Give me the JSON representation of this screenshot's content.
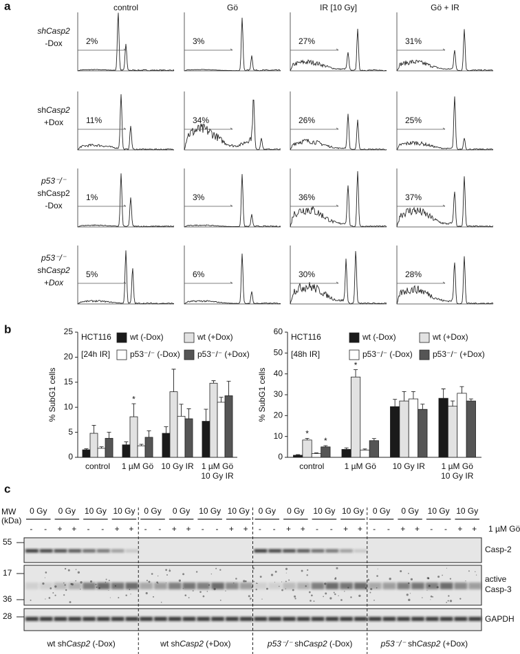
{
  "figure": {
    "panel_a": {
      "label": "a",
      "columns": [
        "control",
        "Gö",
        "IR [10 Gy]",
        "Gö + IR"
      ],
      "rows": [
        {
          "lines": [
            [
              {
                "text": "shCasp2",
                "italic": true
              }
            ],
            [
              {
                "text": "-Dox"
              }
            ]
          ],
          "percents": [
            "2%",
            "3%",
            "27%",
            "31%"
          ]
        },
        {
          "lines": [
            [
              {
                "text": "sh"
              },
              {
                "text": "Casp2",
                "italic": true
              }
            ],
            [
              {
                "text": "+Dox"
              }
            ]
          ],
          "percents": [
            "11%",
            "34%",
            "26%",
            "25%"
          ]
        },
        {
          "lines": [
            [
              {
                "text": "p53⁻/⁻",
                "italic": true
              }
            ],
            [
              {
                "text": "shCasp2"
              }
            ],
            [
              {
                "text": "-Dox"
              }
            ]
          ],
          "percents": [
            "1%",
            "3%",
            "36%",
            "37%"
          ]
        },
        {
          "lines": [
            [
              {
                "text": "p53⁻/⁻",
                "italic": true
              }
            ],
            [
              {
                "text": "sh"
              },
              {
                "text": "Casp2",
                "italic": true
              }
            ],
            [
              {
                "text": "+Dox",
                "italic": true
              }
            ]
          ],
          "percents": [
            "5%",
            "6%",
            "30%",
            "28%"
          ]
        }
      ]
    },
    "panel_b_label": "b",
    "panel_c": {
      "label": "c",
      "mw_label": [
        "MW",
        "(kDa)"
      ],
      "mw_markers": [
        "55",
        "17",
        "36",
        "28"
      ],
      "treatment": "1 µM Gö",
      "bands": [
        [
          "Casp-2"
        ],
        [
          "active",
          "Casp-3"
        ],
        [
          "GAPDH"
        ]
      ],
      "sections": [
        {
          "doses": [
            "0 Gy",
            "0 Gy",
            "10 Gy",
            "10 Gy"
          ],
          "signs": [
            "-",
            "-",
            "+",
            "+",
            "-",
            "-",
            "+",
            "+"
          ],
          "label": [
            {
              "text": "wt sh"
            },
            {
              "text": "Casp2",
              "italic": true
            },
            {
              "text": " (-Dox)"
            }
          ]
        },
        {
          "doses": [
            "0 Gy",
            "0 Gy",
            "10 Gy",
            "10 Gy"
          ],
          "signs": [
            "-",
            "-",
            "+",
            "+",
            "-",
            "-",
            "+",
            "+"
          ],
          "label": [
            {
              "text": "wt sh"
            },
            {
              "text": "Casp2",
              "italic": true
            },
            {
              "text": " (+Dox)"
            }
          ]
        },
        {
          "doses": [
            "0 Gy",
            "0 Gy",
            "10 Gy",
            "10 Gy"
          ],
          "signs": [
            "-",
            "-",
            "+",
            "+",
            "-",
            "-",
            "+",
            "+"
          ],
          "label": [
            {
              "text": "p53⁻/⁻",
              "italic": true
            },
            {
              "text": " sh"
            },
            {
              "text": "Casp2",
              "italic": true
            },
            {
              "text": " (-Dox)"
            }
          ]
        },
        {
          "doses": [
            "0 Gy",
            "0 Gy",
            "10 Gy",
            "10 Gy"
          ],
          "signs": [
            "-",
            "-",
            "+",
            "+",
            "-",
            "-",
            "+",
            "+"
          ],
          "label": [
            {
              "text": "p53⁻/⁻",
              "italic": true
            },
            {
              "text": " sh"
            },
            {
              "text": "Casp2",
              "italic": true
            },
            {
              "text": " (+Dox)"
            }
          ]
        }
      ]
    }
  },
  "chart_data": [
    {
      "type": "bar",
      "annotations": [
        "HCT116",
        "[24h IR]"
      ],
      "ylabel": "% SubG1 cells",
      "categories": [
        [
          "control"
        ],
        [
          "1 µM Gö"
        ],
        [
          "10 Gy IR"
        ],
        [
          "1 µM Gö",
          "10 Gy IR"
        ]
      ],
      "ylim": [
        0,
        25
      ],
      "yticks": [
        0,
        5,
        10,
        15,
        20,
        25
      ],
      "series": [
        {
          "name": "wt (-Dox)",
          "color": "#1a1a1a",
          "values": [
            1.5,
            2.5,
            4.8,
            7.2
          ],
          "errors": [
            0.2,
            0.6,
            1.3,
            2.4
          ]
        },
        {
          "name": "wt (+Dox)",
          "color": "#e2e2e2",
          "values": [
            4.8,
            8.1,
            13.1,
            14.8
          ],
          "errors": [
            1.6,
            2.6,
            4.5,
            0.5
          ]
        },
        {
          "name": "p53⁻/⁻ (-Dox)",
          "color": "#ffffff",
          "values": [
            1.8,
            2.3,
            8.2,
            11.0
          ],
          "errors": [
            0.3,
            0.3,
            2.4,
            1.0
          ]
        },
        {
          "name": "p53⁻/⁻ (+Dox)",
          "color": "#555555",
          "values": [
            3.8,
            4.0,
            7.7,
            12.3
          ],
          "errors": [
            1.2,
            1.3,
            2.0,
            2.9
          ]
        }
      ],
      "markers": [
        {
          "text": "*",
          "series": 1,
          "category": 1
        }
      ]
    },
    {
      "type": "bar",
      "annotations": [
        "HCT116",
        "[48h IR]"
      ],
      "ylabel": "% SubG1 cells",
      "categories": [
        [
          "control"
        ],
        [
          "1 µM Gö"
        ],
        [
          "10 Gy IR"
        ],
        [
          "1 µM Gö",
          "10 Gy IR"
        ]
      ],
      "ylim": [
        0,
        60
      ],
      "yticks": [
        0,
        10,
        20,
        30,
        40,
        50,
        60
      ],
      "series": [
        {
          "name": "wt (-Dox)",
          "color": "#1a1a1a",
          "values": [
            1.0,
            3.8,
            24.3,
            28.3
          ],
          "errors": [
            0.3,
            0.7,
            3.5,
            4.5
          ]
        },
        {
          "name": "wt (+Dox)",
          "color": "#e2e2e2",
          "values": [
            8.3,
            38.5,
            27.0,
            24.5
          ],
          "errors": [
            0.8,
            3.5,
            4.5,
            2.5
          ]
        },
        {
          "name": "p53⁻/⁻ (-Dox)",
          "color": "#ffffff",
          "values": [
            1.8,
            3.5,
            28.0,
            30.7
          ],
          "errors": [
            0.3,
            0.5,
            3.5,
            3.2
          ]
        },
        {
          "name": "p53⁻/⁻ (+Dox)",
          "color": "#555555",
          "values": [
            5.0,
            8.0,
            23.0,
            27.0
          ],
          "errors": [
            0.6,
            1.0,
            2.5,
            1.0
          ]
        }
      ],
      "markers": [
        {
          "text": "*",
          "series": 1,
          "category": 0
        },
        {
          "text": "*",
          "series": 3,
          "category": 0
        },
        {
          "text": "*",
          "series": 1,
          "category": 1
        }
      ]
    }
  ]
}
